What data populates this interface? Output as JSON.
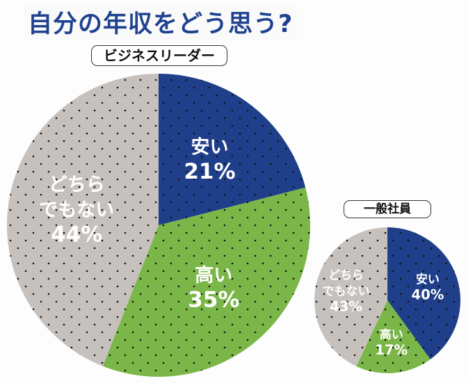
{
  "title": "自分の年収をどう思う?",
  "chart_data": [
    {
      "type": "pie",
      "title": "ビジネスリーダー",
      "slices": [
        {
          "label": "安い",
          "value": 21,
          "value_label": "21%",
          "color": "#1f3f8a"
        },
        {
          "label": "高い",
          "value": 35,
          "value_label": "35%",
          "color": "#7ab648"
        },
        {
          "label": "どちら\nでもない",
          "value": 44,
          "value_label": "44%",
          "color": "#c6c1bd"
        }
      ]
    },
    {
      "type": "pie",
      "title": "一般社員",
      "slices": [
        {
          "label": "安い",
          "value": 40,
          "value_label": "40%",
          "color": "#1f3f8a"
        },
        {
          "label": "高い",
          "value": 17,
          "value_label": "17%",
          "color": "#7ab648"
        },
        {
          "label": "どちら\nでもない",
          "value": 43,
          "value_label": "43%",
          "color": "#c6c1bd"
        }
      ]
    }
  ]
}
